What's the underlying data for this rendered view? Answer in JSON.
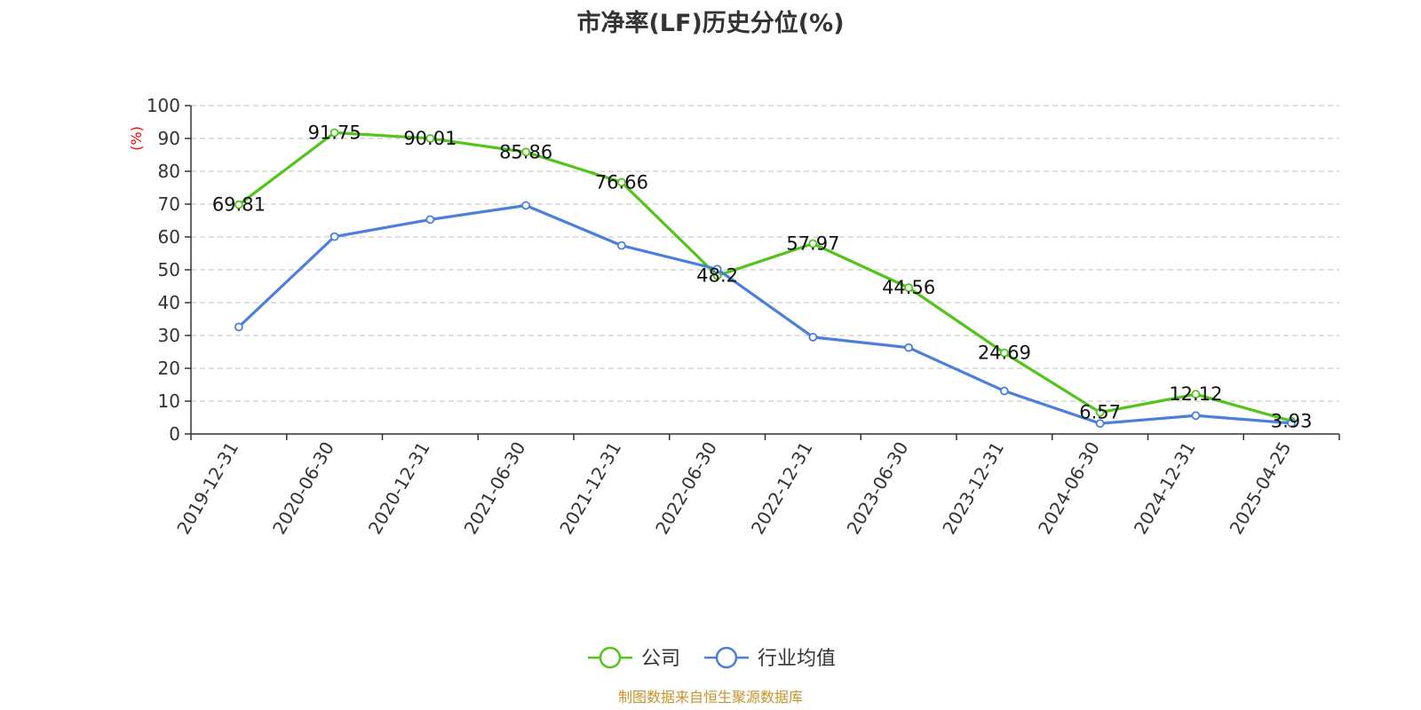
{
  "title": "市净率(LF)历史分位(%)",
  "source": "制图数据来自恒生聚源数据库",
  "chart_data": {
    "type": "line",
    "title": "市净率(LF)历史分位(%)",
    "ylabel": "(%)",
    "ylim": [
      0,
      100
    ],
    "yticks": [
      0,
      10,
      20,
      30,
      40,
      50,
      60,
      70,
      80,
      90,
      100
    ],
    "grid": true,
    "legend_position": "bottom-center",
    "categories": [
      "2019-12-31",
      "2020-06-30",
      "2020-12-31",
      "2021-06-30",
      "2021-12-31",
      "2022-06-30",
      "2022-12-31",
      "2023-06-30",
      "2023-12-31",
      "2024-06-30",
      "2024-12-31",
      "2025-04-25"
    ],
    "series": [
      {
        "name": "公司",
        "color": "#52c41a",
        "values": [
          69.81,
          91.75,
          90.01,
          85.86,
          76.66,
          48.2,
          57.97,
          44.56,
          24.69,
          6.57,
          12.12,
          3.93
        ],
        "labels": [
          "69.81",
          "91.75",
          "90.01",
          "85.86",
          "76.66",
          "48.2",
          "57.97",
          "44.56",
          "24.69",
          "6.57",
          "12.12",
          "3.93"
        ]
      },
      {
        "name": "行业均值",
        "color": "#4a7fdc",
        "values": [
          32.6,
          60.1,
          65.3,
          69.6,
          57.4,
          50.2,
          29.5,
          26.3,
          13.1,
          3.2,
          5.6,
          3.3
        ]
      }
    ]
  }
}
